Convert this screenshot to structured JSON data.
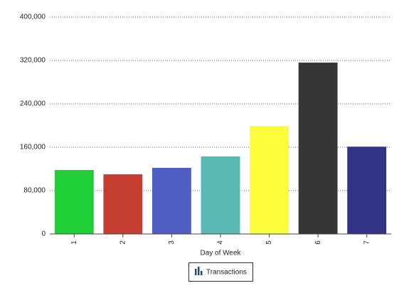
{
  "chart_data": {
    "type": "bar",
    "x_label": "Day of Week",
    "categories": [
      "1",
      "2",
      "3",
      "4",
      "5",
      "6",
      "7"
    ],
    "series": [
      {
        "name": "Transactions",
        "values": [
          118000,
          110000,
          122000,
          143000,
          199000,
          316000,
          161000
        ],
        "colors": [
          "#1ecf37",
          "#c53d2e",
          "#4f5fc1",
          "#5ab8b5",
          "#fcfc3c",
          "#363636",
          "#323385"
        ]
      }
    ],
    "ylim": [
      0,
      400000
    ],
    "yticks": [
      0,
      {
        "value": 80000,
        "label": "80,000"
      },
      {
        "value": 160000,
        "label": "160,000"
      },
      {
        "value": 240000,
        "label": "240,000"
      },
      {
        "value": 320000,
        "label": "320,000"
      },
      {
        "value": 400000,
        "label": "400,000"
      }
    ],
    "grid": true,
    "legend": "bottom"
  }
}
